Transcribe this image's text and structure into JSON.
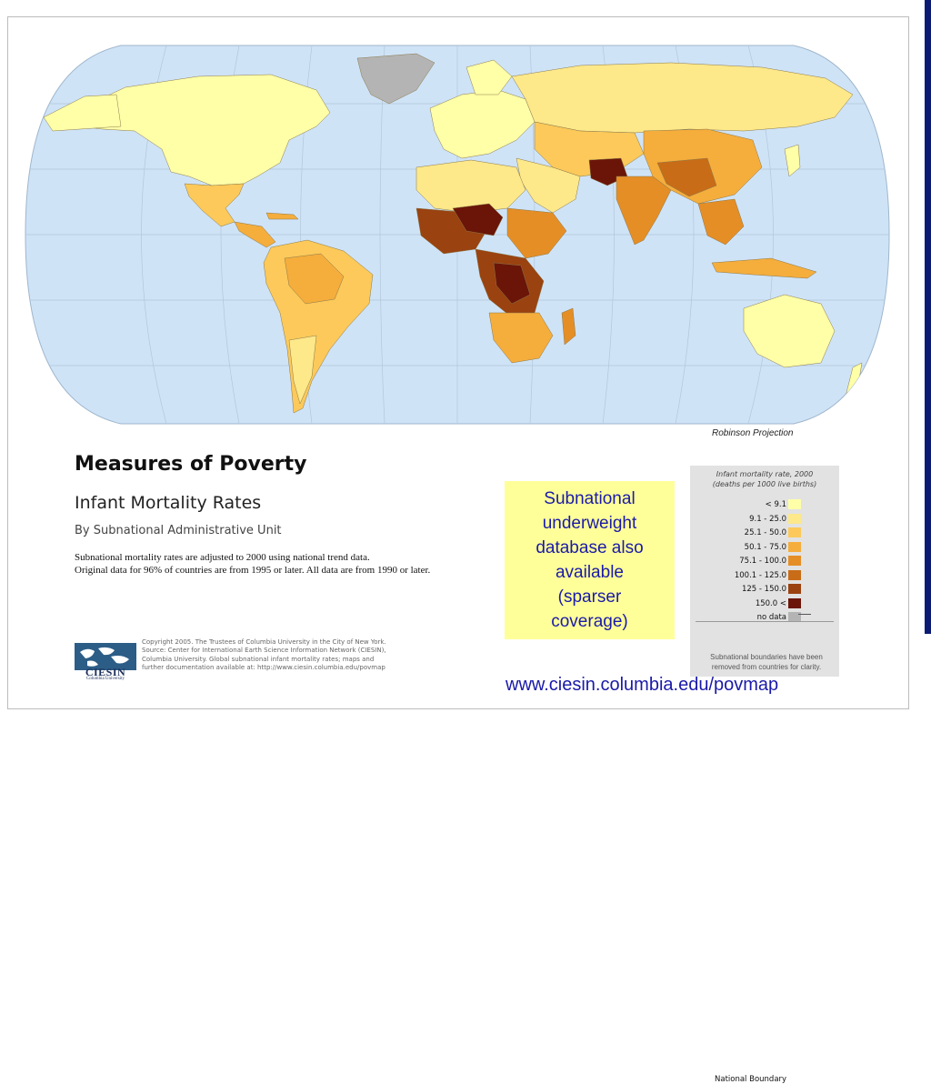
{
  "projection_label": "Robinson Projection",
  "title": "Measures of Poverty",
  "subtitle": "Infant Mortality Rates",
  "by_line": "By Subnational Administrative Unit",
  "notes": [
    "Subnational mortality rates are adjusted to 2000 using national trend data.",
    "Original data for 96% of countries are from 1995 or later. All data are from 1990 or later."
  ],
  "logo": {
    "name": "CIESIN",
    "sub": "Columbia University"
  },
  "copyright": [
    "Copyright 2005. The Trustees of Columbia University in the City of New York.",
    "Source: Center for International Earth Science Information Network (CIESIN),",
    "Columbia University. Global subnational infant mortality rates; maps and",
    "further documentation available at: http://www.ciesin.columbia.edu/povmap"
  ],
  "callout": "Subnational\nunderweight\ndatabase also\navailable\n(sparser\ncoverage)",
  "legend": {
    "title_line1": "Infant mortality rate, 2000",
    "title_line2": "(deaths per 1000 live births)",
    "classes": [
      {
        "label": "< 9.1",
        "color": "#ffffa8"
      },
      {
        "label": "9.1 - 25.0",
        "color": "#fde88a"
      },
      {
        "label": "25.1 - 50.0",
        "color": "#fcc95a"
      },
      {
        "label": "50.1 - 75.0",
        "color": "#f5ad3c"
      },
      {
        "label": "75.1 - 100.0",
        "color": "#e58e26"
      },
      {
        "label": "100.1 - 125.0",
        "color": "#c86c17"
      },
      {
        "label": "125 - 150.0",
        "color": "#9a4210"
      },
      {
        "label": "150.0 <",
        "color": "#6b1508"
      },
      {
        "label": "no data",
        "color": "#b4b4b4"
      }
    ],
    "boundary_label": "National Boundary",
    "footnote_line1": "Subnational boundaries have been",
    "footnote_line2": "removed from countries for clarity."
  },
  "url": "www.ciesin.columbia.edu/povmap",
  "colors": {
    "ocean": "#cfe3f7",
    "accent_text": "#1a1aa8",
    "side_bar": "#0c1a73"
  }
}
